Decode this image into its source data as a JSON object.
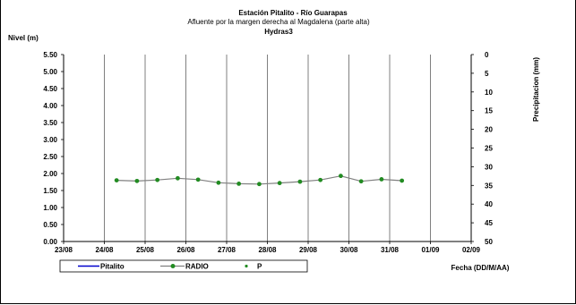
{
  "chart_data": {
    "type": "line",
    "title": "Estación Pitalito  - Río Guarapas",
    "subtitle": "Afluente por la margen derecha al Magdalena (parte alta)",
    "subtitle2": "Hydras3",
    "ylabel": "Nivel (m)",
    "y2label": "Precipitacion (mm)",
    "xlabel": "Fecha (DD/M/AA)",
    "ylim": [
      0,
      5.5
    ],
    "y2lim": [
      0,
      50
    ],
    "y_ticks": [
      "5.50",
      "5.00",
      "4.50",
      "4.00",
      "3.50",
      "3.00",
      "2.50",
      "2.00",
      "1.50",
      "1.00",
      "0.50",
      "0.00"
    ],
    "y2_ticks": [
      "0",
      "5",
      "10",
      "15",
      "20",
      "25",
      "30",
      "35",
      "40",
      "45",
      "50"
    ],
    "x_ticks": [
      "23/08",
      "24/08",
      "25/08",
      "26/08",
      "27/08",
      "28/08",
      "29/08",
      "30/08",
      "31/08",
      "01/09",
      "02/09"
    ],
    "grid": true,
    "legend_position": "bottom-left",
    "legend": [
      "Pitalito",
      "RADIO",
      "P"
    ],
    "series": [
      {
        "name": "RADIO",
        "color": "#808080",
        "marker_color": "#228b22",
        "x": [
          24.3,
          24.8,
          25.3,
          25.8,
          26.3,
          26.8,
          27.3,
          27.8,
          28.3,
          28.8,
          29.3,
          29.8,
          30.3,
          30.8,
          31.3
        ],
        "values": [
          1.8,
          1.78,
          1.81,
          1.86,
          1.82,
          1.73,
          1.7,
          1.69,
          1.72,
          1.76,
          1.81,
          1.93,
          1.77,
          1.83,
          1.79
        ]
      }
    ]
  }
}
